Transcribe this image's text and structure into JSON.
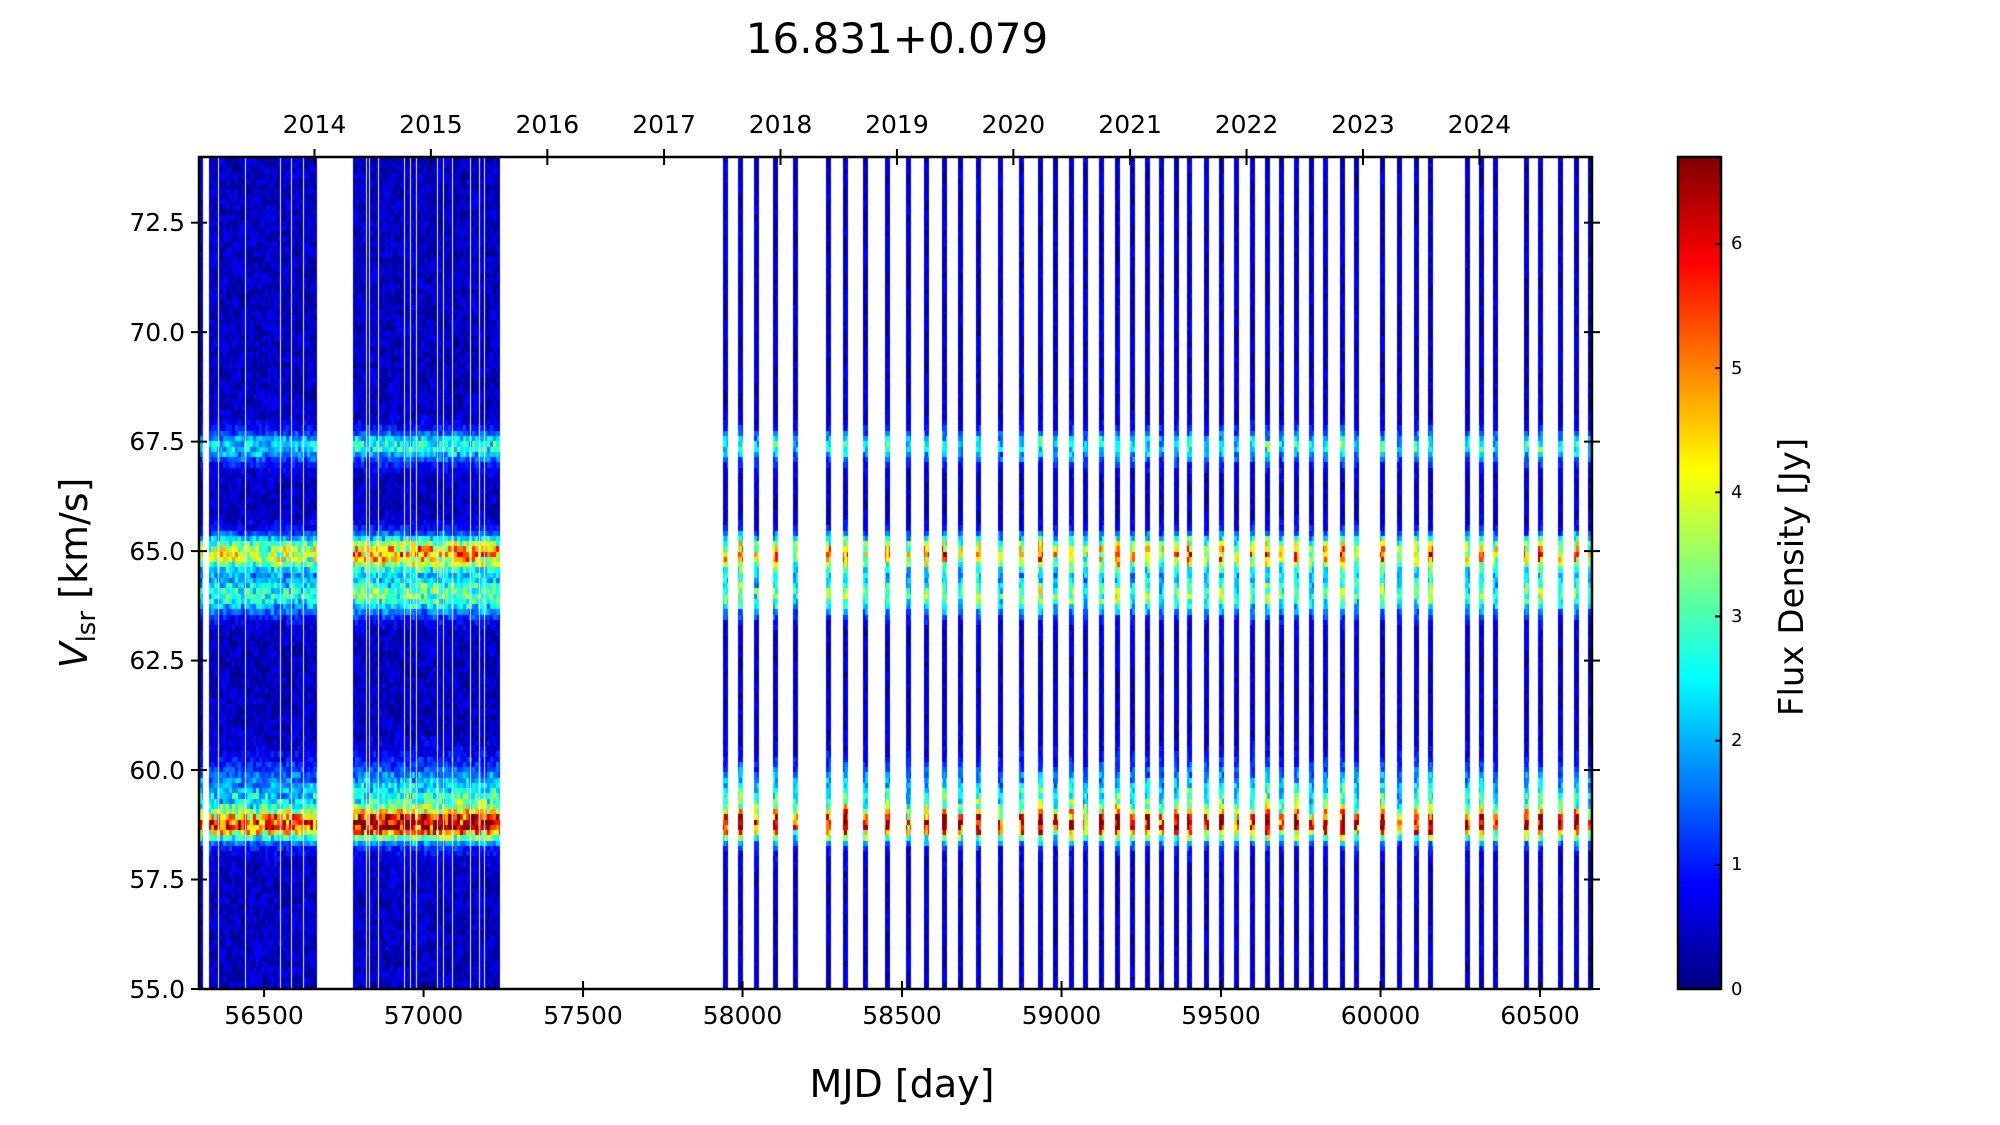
{
  "chart_data": {
    "type": "heatmap",
    "title": "16.831+0.079",
    "xlabel": "MJD [day]",
    "ylabel": "V_lsr [km/s]",
    "ylabel_main": "V",
    "ylabel_sub": "lsr",
    "ylabel_unit": " [km/s]",
    "colorbar_label": "Flux Density [Jy]",
    "colormap": "jet",
    "xlim": [
      56296,
      60663
    ],
    "ylim": [
      55.0,
      74.0
    ],
    "clim": [
      0,
      6.7
    ],
    "x_ticks": [
      56500,
      57000,
      57500,
      58000,
      58500,
      59000,
      59500,
      60000,
      60500
    ],
    "y_ticks": [
      55.0,
      57.5,
      60.0,
      62.5,
      65.0,
      67.5,
      70.0,
      72.5
    ],
    "y_tick_labels": [
      "55.0",
      "57.5",
      "60.0",
      "62.5",
      "65.0",
      "67.5",
      "70.0",
      "72.5"
    ],
    "colorbar_ticks": [
      0,
      1,
      2,
      3,
      4,
      5,
      6
    ],
    "top_axis": {
      "labels": [
        "2014",
        "2015",
        "2016",
        "2017",
        "2018",
        "2019",
        "2020",
        "2021",
        "2022",
        "2023",
        "2024"
      ],
      "mjd": [
        56658,
        57023,
        57388,
        57754,
        58119,
        58484,
        58849,
        59215,
        59580,
        59945,
        60310
      ]
    },
    "dense_blocks": [
      {
        "start_mjd": 56328,
        "end_mjd": 56665,
        "gaps_mjd": [
          56356,
          56441,
          56550,
          56584,
          56622
        ]
      },
      {
        "start_mjd": 56779,
        "end_mjd": 57240,
        "gaps_mjd": [
          56820,
          56829,
          56857,
          56939,
          56958,
          56977,
          57043,
          57062,
          57090,
          57147,
          57175,
          57191
        ]
      }
    ],
    "isolated_epochs_mjd": [
      56300,
      57945,
      57995,
      58045,
      58102,
      58165,
      58271,
      58324,
      58387,
      58453,
      58519,
      58578,
      58632,
      58682,
      58741,
      58810,
      58873,
      58933,
      58980,
      59030,
      59074,
      59124,
      59174,
      59221,
      59268,
      59312,
      59359,
      59400,
      59453,
      59500,
      59547,
      59600,
      59647,
      59691,
      59738,
      59785,
      59829,
      59882,
      59926,
      60005,
      60058,
      60114,
      60158,
      60274,
      60318,
      60362,
      60459,
      60503,
      60563,
      60613,
      60657
    ],
    "spectral_components": [
      {
        "velocity_kms": 67.4,
        "peak_jy": 2.3,
        "width_kms": 0.25
      },
      {
        "velocity_kms": 64.95,
        "peak_jy": 4.6,
        "width_kms": 0.28
      },
      {
        "velocity_kms": 64.0,
        "peak_jy": 3.0,
        "width_kms": 0.3
      },
      {
        "velocity_kms": 59.3,
        "peak_jy": 2.4,
        "width_kms": 0.55
      },
      {
        "velocity_kms": 58.75,
        "peak_jy": 5.2,
        "width_kms": 0.22
      }
    ],
    "noise_jy": 0.55
  }
}
